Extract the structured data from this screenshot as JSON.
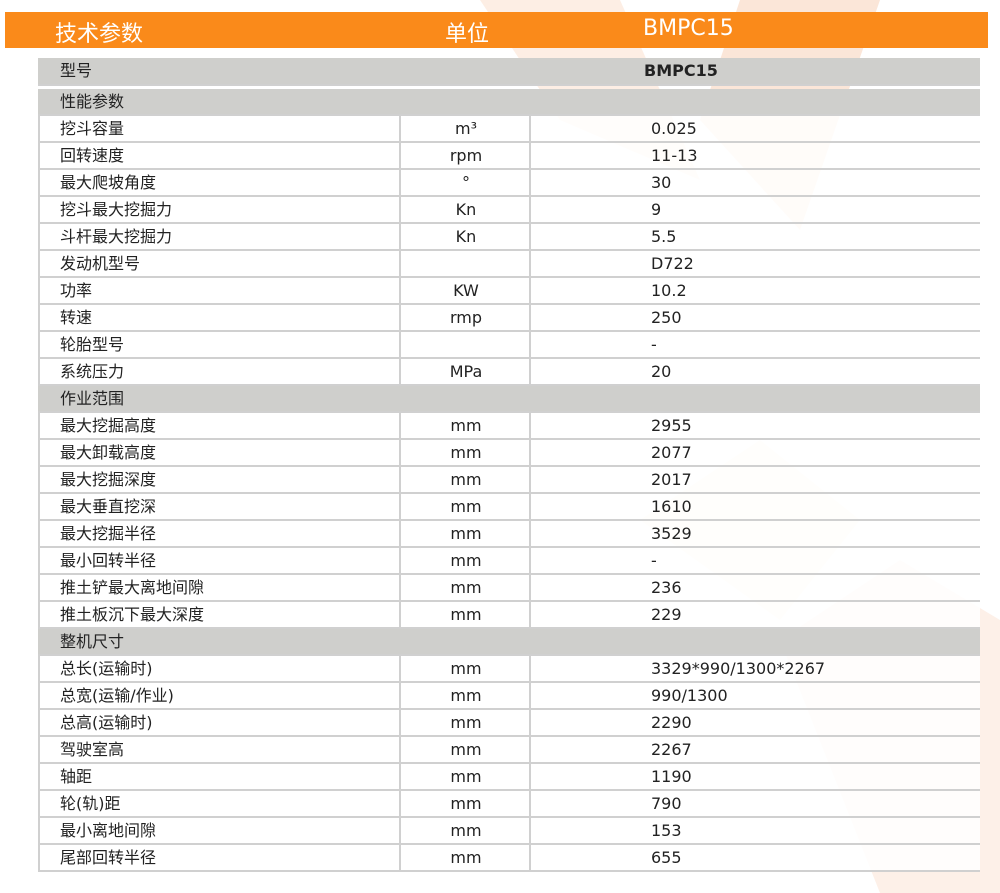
{
  "colors": {
    "header": "#fa8a1a",
    "section": "#cfcfcc"
  },
  "header": {
    "param": "技术参数",
    "unit": "单位",
    "model": "BMPC15"
  },
  "model_row": {
    "label": "型号",
    "value": "BMPC15"
  },
  "sections": [
    {
      "title": "性能参数",
      "rows": [
        {
          "name": "挖斗容量",
          "unit": "m³",
          "value": "0.025"
        },
        {
          "name": "回转速度",
          "unit": "rpm",
          "value": "11-13"
        },
        {
          "name": "最大爬坡角度",
          "unit": "°",
          "value": "30"
        },
        {
          "name": "挖斗最大挖掘力",
          "unit": "Kn",
          "value": "9"
        },
        {
          "name": "斗杆最大挖掘力",
          "unit": "Kn",
          "value": "5.5"
        },
        {
          "name": "发动机型号",
          "unit": "",
          "value": "D722"
        },
        {
          "name": "功率",
          "unit": "KW",
          "value": "10.2"
        },
        {
          "name": "转速",
          "unit": "rmp",
          "value": "250"
        },
        {
          "name": "轮胎型号",
          "unit": "",
          "value": "-"
        },
        {
          "name": "系统压力",
          "unit": "MPa",
          "value": "20"
        }
      ]
    },
    {
      "title": "作业范围",
      "rows": [
        {
          "name": "最大挖掘高度",
          "unit": "mm",
          "value": "2955"
        },
        {
          "name": "最大卸载高度",
          "unit": "mm",
          "value": "2077"
        },
        {
          "name": "最大挖掘深度",
          "unit": "mm",
          "value": "2017"
        },
        {
          "name": "最大垂直挖深",
          "unit": "mm",
          "value": "1610"
        },
        {
          "name": "最大挖掘半径",
          "unit": "mm",
          "value": "3529"
        },
        {
          "name": "最小回转半径",
          "unit": "mm",
          "value": "-"
        },
        {
          "name": "推土铲最大离地间隙",
          "unit": "mm",
          "value": "236"
        },
        {
          "name": "推土板沉下最大深度",
          "unit": "mm",
          "value": "229"
        }
      ]
    },
    {
      "title": "整机尺寸",
      "rows": [
        {
          "name": "总长(运输时)",
          "unit": "mm",
          "value": "3329*990/1300*2267"
        },
        {
          "name": "总宽(运输/作业)",
          "unit": "mm",
          "value": "990/1300"
        },
        {
          "name": "总高(运输时)",
          "unit": "mm",
          "value": "2290"
        },
        {
          "name": "驾驶室高",
          "unit": "mm",
          "value": "2267"
        },
        {
          "name": "轴距",
          "unit": "mm",
          "value": "1190"
        },
        {
          "name": "轮(轨)距",
          "unit": "mm",
          "value": "790"
        },
        {
          "name": "最小离地间隙",
          "unit": "mm",
          "value": "153"
        },
        {
          "name": "尾部回转半径",
          "unit": "mm",
          "value": "655"
        }
      ]
    }
  ]
}
